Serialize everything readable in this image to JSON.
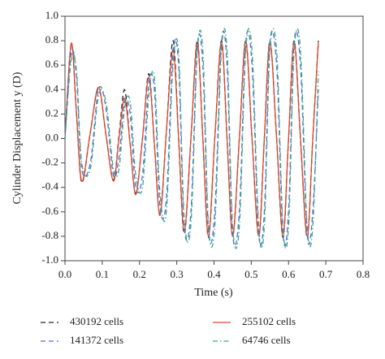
{
  "chart_data": {
    "type": "line",
    "xlabel": "Time (s)",
    "ylabel": "Cylinder Displacement y (D)",
    "xlim": [
      0,
      0.8
    ],
    "ylim": [
      -1,
      1
    ],
    "xticks": [
      {
        "value": 0,
        "label": "0.0"
      },
      0.1,
      0.2,
      0.3,
      0.4,
      0.5,
      0.6,
      0.7,
      0.8
    ],
    "yticks": [
      {
        "value": -1,
        "label": "-1.0"
      },
      -0.8,
      -0.6,
      -0.4,
      -0.2,
      {
        "value": 0,
        "label": "0.0"
      },
      0.2,
      0.4,
      0.6,
      0.8,
      {
        "value": 1,
        "label": "1.0"
      }
    ],
    "x": [
      0,
      0.017,
      0.031,
      0.045,
      0.068,
      0.09,
      0.11,
      0.13,
      0.145,
      0.16,
      0.175,
      0.19,
      0.208,
      0.225,
      0.24,
      0.255,
      0.272,
      0.29,
      0.305,
      0.32,
      0.338,
      0.355,
      0.37,
      0.385,
      0.402,
      0.42,
      0.435,
      0.45,
      0.468,
      0.485,
      0.502,
      0.52,
      0.535,
      0.55,
      0.568,
      0.585,
      0.6,
      0.615,
      0.632,
      0.65,
      0.665,
      0.68
    ],
    "series": [
      {
        "name": "430192 cells",
        "color": "#222222",
        "dash": "dashed",
        "values": [
          0,
          0.77,
          0.2,
          -0.36,
          0.05,
          0.41,
          0.03,
          -0.34,
          0.02,
          0.4,
          -0.05,
          -0.45,
          0,
          0.53,
          -0.05,
          -0.62,
          0.05,
          0.8,
          0,
          -0.78,
          0,
          0.8,
          0,
          -0.81,
          0,
          0.8,
          0,
          -0.8,
          0,
          0.8,
          0,
          -0.8,
          0,
          0.8,
          0,
          -0.81,
          0,
          0.8,
          0,
          -0.81,
          0,
          0.8
        ]
      },
      {
        "name": "255102 cells",
        "color": "#e0452c",
        "dash": "solid",
        "values": [
          0,
          0.78,
          0.2,
          -0.35,
          0.05,
          0.42,
          0.03,
          -0.35,
          0,
          0.33,
          -0.05,
          -0.46,
          0,
          0.5,
          -0.05,
          -0.63,
          0.05,
          0.73,
          0,
          -0.76,
          0,
          0.78,
          0,
          -0.8,
          0,
          0.79,
          0,
          -0.8,
          0,
          0.79,
          0,
          -0.8,
          0,
          0.79,
          0,
          -0.8,
          0,
          0.79,
          0,
          -0.8,
          0,
          0.79
        ]
      },
      {
        "name": "141372 cells",
        "color": "#4a6fd0",
        "dash": "dashed",
        "values": [
          0,
          0.7,
          0.5,
          -0.25,
          -0.2,
          0.4,
          0.25,
          -0.3,
          -0.15,
          0.3,
          0.2,
          -0.4,
          -0.3,
          0.45,
          0.4,
          -0.55,
          -0.5,
          0.7,
          0.6,
          -0.72,
          -0.6,
          0.75,
          0.6,
          -0.75,
          -0.6,
          0.78,
          0.6,
          -0.78,
          -0.6,
          0.78,
          0.6,
          -0.78,
          -0.6,
          0.78,
          0.6,
          -0.78,
          -0.6,
          0.78,
          0.6,
          -0.78,
          -0.6,
          0.4
        ]
      },
      {
        "name": "64746 cells",
        "color": "#3aa58a",
        "dash": "dashdot",
        "values": [
          0,
          0.65,
          0.55,
          -0.2,
          -0.25,
          0.35,
          0.3,
          -0.25,
          -0.25,
          0.25,
          0.3,
          -0.3,
          -0.4,
          0.35,
          0.5,
          -0.45,
          -0.6,
          0.6,
          0.7,
          -0.65,
          -0.7,
          0.7,
          0.72,
          -0.7,
          -0.72,
          0.72,
          0.72,
          -0.72,
          -0.72,
          0.72,
          0.72,
          -0.72,
          -0.72,
          0.72,
          0.72,
          -0.72,
          -0.72,
          0.72,
          0.72,
          -0.72,
          -0.72,
          0.55
        ]
      }
    ]
  }
}
